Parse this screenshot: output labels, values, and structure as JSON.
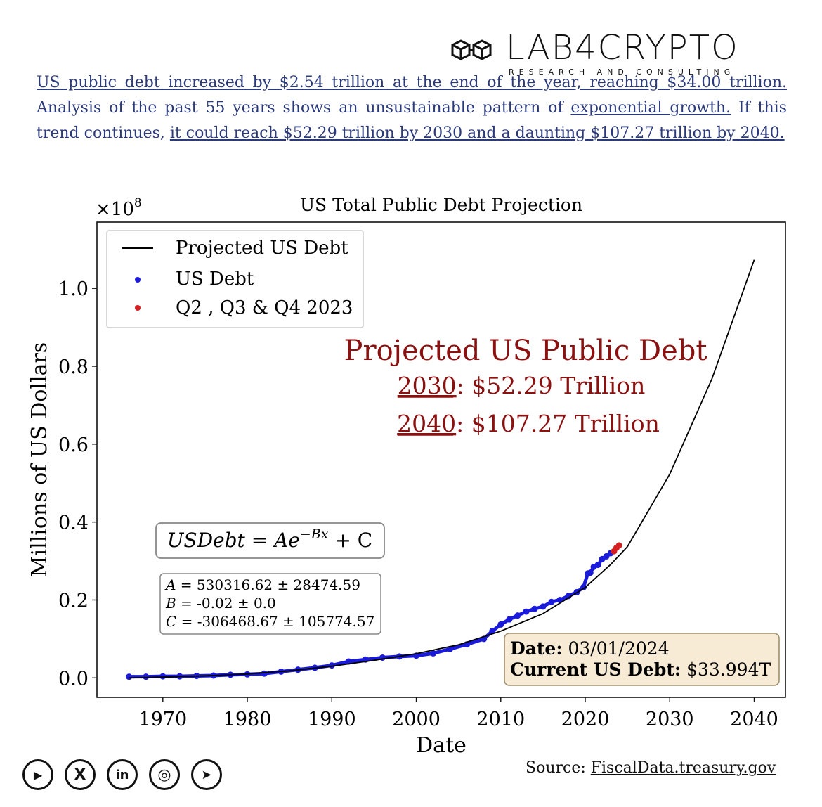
{
  "brand": {
    "name": "LAB4CRYPTO",
    "tagline": "RESEARCH AND CONSULTING",
    "logo_icon": "linked-cubes-icon"
  },
  "intro": {
    "link1": "US public debt increased by $2.54 trillion at the end of the year, reaching $34.00 trillion.",
    "text2": " Analysis of the past 55 years shows an unsustainable pattern of ",
    "link2": "exponential growth.",
    "text3": " If this trend continues, ",
    "link3": "it could reach $52.29 trillion by 2030 and a daunting $107.27 trillion by 2040."
  },
  "chart_data": {
    "type": "line",
    "title": "US Total Public Debt Projection",
    "xlabel": "Date",
    "ylabel": "Millions of US Dollars",
    "y_multiplier_label": "×10",
    "y_multiplier_exp": "8",
    "xlim": [
      1962.2,
      2043.7
    ],
    "ylim": [
      -0.05,
      1.17
    ],
    "x_ticks": [
      1970,
      1980,
      1990,
      2000,
      2010,
      2020,
      2030,
      2040
    ],
    "y_ticks": [
      0.0,
      0.2,
      0.4,
      0.6,
      0.8,
      1.0
    ],
    "y_tick_labels": [
      "0.0",
      "0.2",
      "0.4",
      "0.6",
      "0.8",
      "1.0"
    ],
    "grid": false,
    "legend_position": "top-left",
    "series": [
      {
        "name": "Projected US Debt",
        "kind": "line",
        "color": "#000000",
        "x": [
          1966,
          1970,
          1975,
          1980,
          1985,
          1990,
          1995,
          2000,
          2005,
          2010,
          2015,
          2020,
          2023,
          2025,
          2030,
          2035,
          2040
        ],
        "y": [
          0.0,
          0.002,
          0.005,
          0.01,
          0.018,
          0.03,
          0.045,
          0.062,
          0.085,
          0.12,
          0.165,
          0.232,
          0.291,
          0.337,
          0.523,
          0.768,
          1.073
        ]
      },
      {
        "name": "US Debt",
        "kind": "scatter",
        "color": "#1a1adb",
        "x": [
          1966,
          1968,
          1970,
          1972,
          1974,
          1976,
          1978,
          1980,
          1982,
          1984,
          1986,
          1988,
          1990,
          1992,
          1994,
          1996,
          1998,
          2000,
          2002,
          2004,
          2006,
          2008,
          2009,
          2010,
          2011,
          2012,
          2013,
          2014,
          2015,
          2016,
          2017,
          2018,
          2019,
          2019.8,
          2020.3,
          2020.6,
          2021,
          2021.5,
          2022,
          2022.5,
          2023
        ],
        "y": [
          0.003,
          0.003,
          0.004,
          0.004,
          0.005,
          0.006,
          0.008,
          0.009,
          0.011,
          0.016,
          0.021,
          0.026,
          0.032,
          0.042,
          0.047,
          0.052,
          0.055,
          0.057,
          0.063,
          0.074,
          0.086,
          0.1,
          0.12,
          0.137,
          0.15,
          0.16,
          0.17,
          0.177,
          0.183,
          0.195,
          0.2,
          0.21,
          0.22,
          0.233,
          0.268,
          0.27,
          0.285,
          0.29,
          0.305,
          0.312,
          0.32
        ]
      },
      {
        "name": "Q2 , Q3 & Q4 2023",
        "kind": "scatter",
        "color": "#d42020",
        "x": [
          2023.4,
          2023.7,
          2024.0
        ],
        "y": [
          0.325,
          0.334,
          0.34
        ]
      }
    ],
    "annotation": {
      "heading": "Projected US Public Debt",
      "line1_year": "2030",
      "line1_value": ": $52.29 Trillion",
      "line2_year": "2040",
      "line2_value": ": $107.27 Trillion",
      "color": "#8b1010"
    },
    "formula": {
      "lhs": "USDebt",
      "eq": " = ",
      "base": "Ae",
      "exp": "−Bx",
      "tail": " + C"
    },
    "params": [
      {
        "var": "A",
        "text": " = 530316.62 ± 28474.59"
      },
      {
        "var": "B",
        "text": " = -0.02 ± 0.0"
      },
      {
        "var": "C",
        "text": " = -306468.67 ± 105774.57"
      }
    ],
    "date_box": {
      "date_label": "Date:",
      "date_value": " 03/01/2024",
      "debt_label": "Current US Debt:",
      "debt_value": " $33.994T",
      "bg": "#f7ebd6"
    }
  },
  "socials": [
    {
      "icon": "youtube-icon",
      "glyph": "▶"
    },
    {
      "icon": "x-twitter-icon",
      "glyph": "X"
    },
    {
      "icon": "linkedin-icon",
      "glyph": "in"
    },
    {
      "icon": "instagram-icon",
      "glyph": "◎"
    },
    {
      "icon": "telegram-icon",
      "glyph": "➤"
    }
  ],
  "source": {
    "label": "Source: ",
    "link": "FiscalData.treasury.gov"
  }
}
